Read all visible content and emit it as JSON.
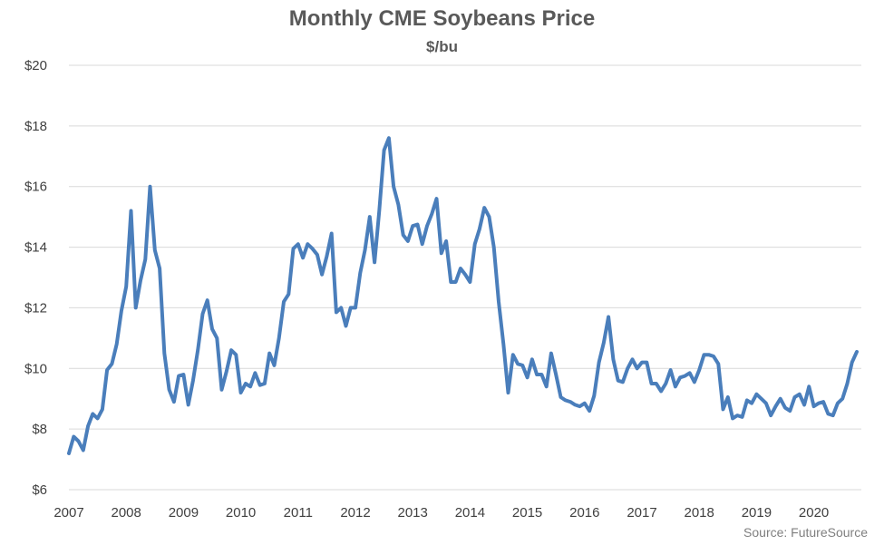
{
  "chart_data": {
    "type": "line",
    "title": "Monthly CME Soybeans Price",
    "subtitle": "$/bu",
    "source": "Source: FutureSource",
    "xlabel": "",
    "ylabel": "",
    "ylim": [
      6,
      20
    ],
    "yticks": [
      6,
      8,
      10,
      12,
      14,
      16,
      18,
      20
    ],
    "ytick_labels": [
      "$6",
      "$8",
      "$10",
      "$12",
      "$14",
      "$16",
      "$18",
      "$20"
    ],
    "xticks": [
      "2007",
      "2008",
      "2009",
      "2010",
      "2011",
      "2012",
      "2013",
      "2014",
      "2015",
      "2016",
      "2017",
      "2018",
      "2019",
      "2020"
    ],
    "grid": "horizontal",
    "legend": "none",
    "line_color": "#4a7ebb",
    "series": [
      {
        "x_start": "2007-01",
        "frequency": "monthly",
        "values": [
          7.2,
          7.75,
          7.6,
          7.3,
          8.1,
          8.5,
          8.35,
          8.65,
          9.95,
          10.15,
          10.8,
          11.9,
          12.7,
          15.2,
          12.0,
          12.9,
          13.6,
          16.0,
          13.9,
          13.3,
          10.5,
          9.3,
          8.9,
          9.75,
          9.8,
          8.8,
          9.6,
          10.6,
          11.8,
          12.25,
          11.3,
          11.0,
          9.3,
          9.9,
          10.6,
          10.45,
          9.2,
          9.5,
          9.4,
          9.85,
          9.45,
          9.5,
          10.5,
          10.1,
          11.0,
          12.2,
          12.45,
          13.95,
          14.1,
          13.65,
          14.1,
          13.95,
          13.75,
          13.1,
          13.7,
          14.45,
          11.85,
          12.0,
          11.4,
          12.0,
          12.0,
          13.15,
          13.9,
          15.0,
          13.5,
          15.2,
          17.2,
          17.6,
          16.0,
          15.4,
          14.4,
          14.2,
          14.7,
          14.75,
          14.1,
          14.7,
          15.1,
          15.6,
          13.8,
          14.2,
          12.85,
          12.85,
          13.3,
          13.1,
          12.85,
          14.1,
          14.6,
          15.3,
          15.0,
          14.0,
          12.2,
          10.8,
          9.2,
          10.45,
          10.15,
          10.1,
          9.7,
          10.3,
          9.8,
          9.8,
          9.4,
          10.5,
          9.8,
          9.05,
          8.95,
          8.9,
          8.8,
          8.75,
          8.85,
          8.6,
          9.1,
          10.2,
          10.85,
          11.7,
          10.3,
          9.6,
          9.55,
          10.0,
          10.3,
          10.0,
          10.2,
          10.2,
          9.5,
          9.5,
          9.25,
          9.5,
          9.95,
          9.4,
          9.7,
          9.75,
          9.85,
          9.55,
          9.95,
          10.45,
          10.45,
          10.4,
          10.15,
          8.65,
          9.05,
          8.35,
          8.45,
          8.4,
          8.95,
          8.85,
          9.15,
          9.0,
          8.85,
          8.45,
          8.75,
          9.0,
          8.7,
          8.6,
          9.05,
          9.15,
          8.8,
          9.4,
          8.75,
          8.85,
          8.9,
          8.5,
          8.45,
          8.85,
          9.0,
          9.5,
          10.2,
          10.55
        ]
      }
    ]
  }
}
